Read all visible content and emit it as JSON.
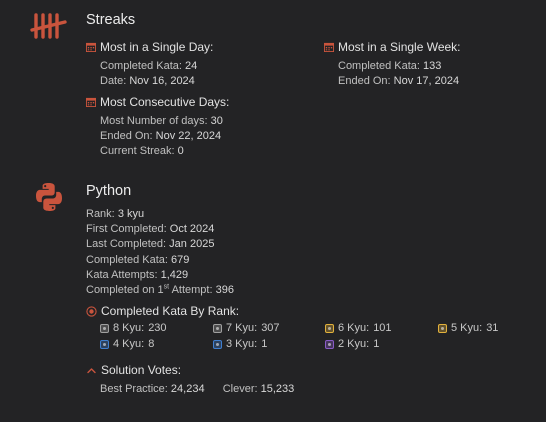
{
  "streaks": {
    "title": "Streaks",
    "single_day": {
      "heading": "Most in a Single Day:",
      "completed_label": "Completed Kata:",
      "completed_value": "24",
      "date_label": "Date:",
      "date_value": "Nov 16, 2024"
    },
    "single_week": {
      "heading": "Most in a Single Week:",
      "completed_label": "Completed Kata:",
      "completed_value": "133",
      "ended_label": "Ended On:",
      "ended_value": "Nov 17, 2024"
    },
    "consecutive": {
      "heading": "Most Consecutive Days:",
      "most_label": "Most Number of days:",
      "most_value": "30",
      "ended_label": "Ended On:",
      "ended_value": "Nov 22, 2024",
      "current_label": "Current Streak:",
      "current_value": "0"
    }
  },
  "python": {
    "title": "Python",
    "stats": [
      {
        "label": "Rank:",
        "value": "3 kyu"
      },
      {
        "label": "First Completed:",
        "value": "Oct 2024"
      },
      {
        "label": "Last Completed:",
        "value": "Jan 2025"
      },
      {
        "label": "Completed Kata:",
        "value": "679"
      },
      {
        "label": "Kata Attempts:",
        "value": "1,429"
      }
    ],
    "first_attempt": {
      "label_pre": "Completed on 1",
      "label_sup": "st",
      "label_post": " Attempt:",
      "value": "396"
    },
    "by_rank": {
      "heading": "Completed Kata By Rank:",
      "ranks": [
        {
          "label": "8 Kyu:",
          "value": "230",
          "color": "#a0a0a0"
        },
        {
          "label": "7 Kyu:",
          "value": "307",
          "color": "#a0a0a0"
        },
        {
          "label": "6 Kyu:",
          "value": "101",
          "color": "#e3b23c"
        },
        {
          "label": "5 Kyu:",
          "value": "31",
          "color": "#e3b23c"
        },
        {
          "label": "4 Kyu:",
          "value": "8",
          "color": "#3f7fd1"
        },
        {
          "label": "3 Kyu:",
          "value": "1",
          "color": "#3f7fd1"
        },
        {
          "label": "2 Kyu:",
          "value": "1",
          "color": "#8a5bc8"
        }
      ]
    },
    "votes": {
      "heading": "Solution Votes:",
      "best_label": "Best Practice:",
      "best_value": "24,234",
      "clever_label": "Clever:",
      "clever_value": "15,233"
    }
  },
  "icons": {
    "streaks_icon": "tally-marks-icon",
    "python_icon": "python-logo-icon",
    "calendar_icon": "calendar-icon",
    "rank_icon": "target-icon",
    "votes_icon": "chevron-up-icon"
  },
  "colors": {
    "accent": "#c9543d",
    "background": "#232325"
  }
}
